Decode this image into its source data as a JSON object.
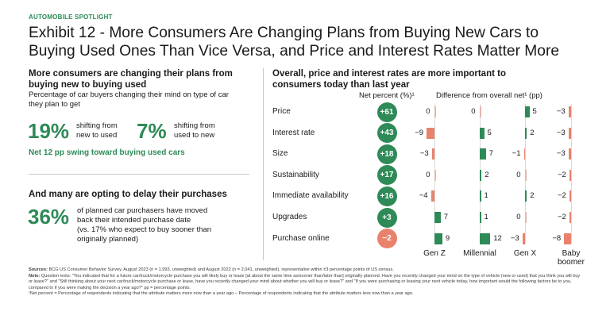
{
  "kicker": "AUTOMOBILE SPOTLIGHT",
  "title_line1": "Exhibit 12 - More Consumers Are Changing Plans from Buying New Cars to",
  "title_line2": "Buying Used Ones Than Vice Versa, and Price and Interest Rates Matter More",
  "left": {
    "heading1_line1": "More consumers are changing their plans from",
    "heading1_line2": "buying new to buying used",
    "sub1_line1": "Percentage of car buyers changing their mind on type of car",
    "sub1_line2": "they plan to get",
    "stat1_value": "19%",
    "stat1_label_line1": "shifting from",
    "stat1_label_line2": "new to used",
    "stat2_value": "7%",
    "stat2_label_line1": "shifting from",
    "stat2_label_line2": "used to new",
    "net_swing": "Net 12 pp swing toward buying used cars",
    "heading2": "And many are opting to delay their purchases",
    "stat3_value": "36%",
    "stat3_line1": "of planned car purchasers have moved",
    "stat3_line2": "back their intended purchase date",
    "stat3_line3": "(vs. 17% who expect to buy sooner than",
    "stat3_line4": "originally planned)"
  },
  "colors": {
    "green": "#2e8a57",
    "salmon": "#e9826d",
    "text": "#1a1a1a"
  },
  "chart_data": {
    "type": "table",
    "title_line1": "Overall, price and interest rates are more important to",
    "title_line2": "consumers today than last year",
    "net_header": "Net percent (%)¹",
    "diff_header": "Difference from overall net¹ (pp)",
    "attributes": [
      "Price",
      "Interest rate",
      "Size",
      "Sustainability",
      "Immediate availability",
      "Upgrades",
      "Purchase online"
    ],
    "net_percent": [
      61,
      43,
      18,
      17,
      16,
      3,
      -2
    ],
    "net_labels": [
      "+61",
      "+43",
      "+18",
      "+17",
      "+16",
      "+3",
      "−2"
    ],
    "groups": [
      "Gen Z",
      "Millennial",
      "Gen X",
      "Baby boomer"
    ],
    "group_line1": [
      "Gen Z",
      "Millennial",
      "Gen X",
      "Baby"
    ],
    "group_line2": [
      "",
      "",
      "",
      "boomer"
    ],
    "differences": [
      [
        0,
        0,
        5,
        -3
      ],
      [
        -9,
        5,
        2,
        -3
      ],
      [
        -3,
        7,
        -1,
        -3
      ],
      [
        0,
        2,
        0,
        -2
      ],
      [
        -4,
        1,
        2,
        -2
      ],
      [
        7,
        1,
        0,
        -2
      ],
      [
        9,
        12,
        -3,
        -8
      ]
    ],
    "difference_labels": [
      [
        "0",
        "0",
        "5",
        "−3"
      ],
      [
        "−9",
        "5",
        "2",
        "−3"
      ],
      [
        "−3",
        "7",
        "−1",
        "−3"
      ],
      [
        "0",
        "2",
        "0",
        "−2"
      ],
      [
        "−4",
        "1",
        "2",
        "−2"
      ],
      [
        "7",
        "1",
        "0",
        "−2"
      ],
      [
        "9",
        "12",
        "−3",
        "−8"
      ]
    ]
  },
  "footer": {
    "sources_label": "Sources:",
    "sources_text": "BCG US Consumer Behavior Survey, August 2023 (n = 1,993, unweighted) and August 2022 (n = 2,041, unweighted), representative within ±3 percentage points of US census.",
    "note_label": "Note:",
    "note_text": "Question texts: \"You indicated that for a future car/truck/motorcycle purchase you will likely buy or lease [at about the same time as/sooner than/later than] originally planned. Have you recently changed your mind on the type of vehicle (new or used) that you think you will buy or lease?\" and \"Still thinking about your next car/truck/motorcycle purchase or lease, have you recently changed your mind about whether you will buy or lease?\" and \"If you were purchasing or leasing your next vehicle today, how important would the following factors be to you, compared to if you were making the decision a year ago?\" pp = percentage points.",
    "footnote": "¹Net percent = Percentage of respondents indicating that the attribute matters more now than a year ago − Percentage of respondents indicating that the attribute matters less now than a year ago."
  }
}
